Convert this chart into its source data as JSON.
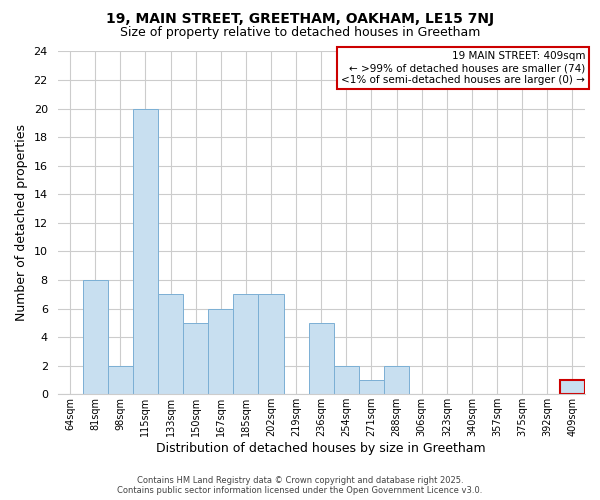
{
  "title": "19, MAIN STREET, GREETHAM, OAKHAM, LE15 7NJ",
  "subtitle": "Size of property relative to detached houses in Greetham",
  "xlabel": "Distribution of detached houses by size in Greetham",
  "ylabel": "Number of detached properties",
  "bar_labels": [
    "64sqm",
    "81sqm",
    "98sqm",
    "115sqm",
    "133sqm",
    "150sqm",
    "167sqm",
    "185sqm",
    "202sqm",
    "219sqm",
    "236sqm",
    "254sqm",
    "271sqm",
    "288sqm",
    "306sqm",
    "323sqm",
    "340sqm",
    "357sqm",
    "375sqm",
    "392sqm",
    "409sqm"
  ],
  "bar_values": [
    0,
    8,
    2,
    20,
    7,
    5,
    6,
    7,
    7,
    0,
    5,
    2,
    1,
    2,
    0,
    0,
    0,
    0,
    0,
    0,
    1
  ],
  "bar_color": "#c8dff0",
  "bar_edge_color": "#7bafd4",
  "highlight_bar_index": 20,
  "highlight_bar_edge_color": "#cc0000",
  "annotation_box_edge_color": "#cc0000",
  "annotation_text_line1": "19 MAIN STREET: 409sqm",
  "annotation_text_line2": "← >99% of detached houses are smaller (74)",
  "annotation_text_line3": "<1% of semi-detached houses are larger (0) →",
  "ylim": [
    0,
    24
  ],
  "yticks": [
    0,
    2,
    4,
    6,
    8,
    10,
    12,
    14,
    16,
    18,
    20,
    22,
    24
  ],
  "grid_color": "#cccccc",
  "footer_line1": "Contains HM Land Registry data © Crown copyright and database right 2025.",
  "footer_line2": "Contains public sector information licensed under the Open Government Licence v3.0.",
  "background_color": "#ffffff",
  "fig_width": 6.0,
  "fig_height": 5.0
}
